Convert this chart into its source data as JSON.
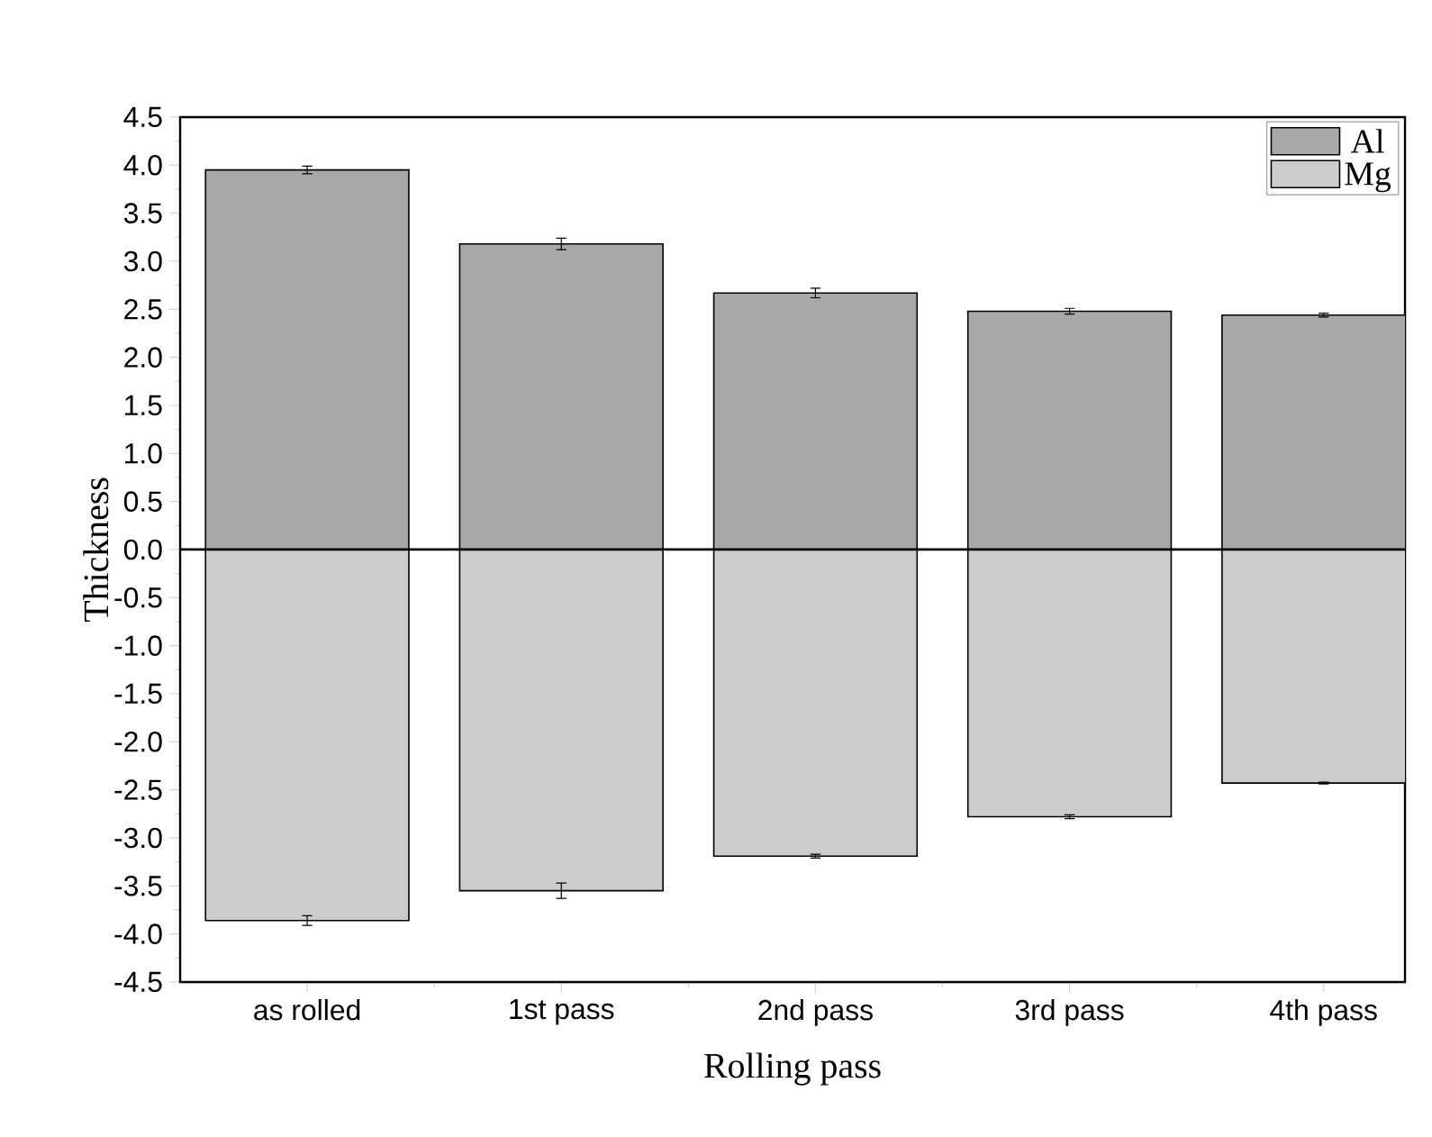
{
  "chart_data": {
    "type": "bar",
    "xlabel": "Rolling pass",
    "ylabel": "Thickness",
    "categories": [
      "as rolled",
      "1st pass",
      "2nd pass",
      "3rd pass",
      "4th pass"
    ],
    "series": [
      {
        "name": "Al",
        "color": "#a8a8a8",
        "values": [
          3.95,
          3.18,
          2.67,
          2.48,
          2.44
        ],
        "errors": [
          0.04,
          0.06,
          0.05,
          0.03,
          0.02
        ]
      },
      {
        "name": "Mg",
        "color": "#cccccc",
        "values": [
          -3.86,
          -3.55,
          -3.19,
          -2.78,
          -2.43
        ],
        "errors": [
          0.05,
          0.08,
          0.02,
          0.02,
          0.01
        ]
      }
    ],
    "ylim": [
      -4.5,
      4.5
    ],
    "yticks": [
      {
        "value": -4.5,
        "label": "-4.5"
      },
      {
        "value": -4,
        "label": "-4.0"
      },
      {
        "value": -3.5,
        "label": "-3.5"
      },
      {
        "value": -3,
        "label": "-3.0"
      },
      {
        "value": -2.5,
        "label": "-2.5"
      },
      {
        "value": -2,
        "label": "-2.0"
      },
      {
        "value": -1.5,
        "label": "-1.5"
      },
      {
        "value": -1,
        "label": "-1.0"
      },
      {
        "value": -0.5,
        "label": "-0.5"
      },
      {
        "value": 0,
        "label": "0.0"
      },
      {
        "value": 0.5,
        "label": "0.5"
      },
      {
        "value": 1,
        "label": "1.0"
      },
      {
        "value": 1.5,
        "label": "1.5"
      },
      {
        "value": 2,
        "label": "2.0"
      },
      {
        "value": 2.5,
        "label": "2.5"
      },
      {
        "value": 3,
        "label": "3.0"
      },
      {
        "value": 3.5,
        "label": "3.5"
      },
      {
        "value": 4,
        "label": "4.0"
      },
      {
        "value": 4.5,
        "label": "4.5"
      }
    ],
    "ref_lines": [
      {
        "axis": "y",
        "value": 0,
        "color": "#000000"
      }
    ],
    "legend": "top right",
    "grid": false,
    "stacked": true
  }
}
